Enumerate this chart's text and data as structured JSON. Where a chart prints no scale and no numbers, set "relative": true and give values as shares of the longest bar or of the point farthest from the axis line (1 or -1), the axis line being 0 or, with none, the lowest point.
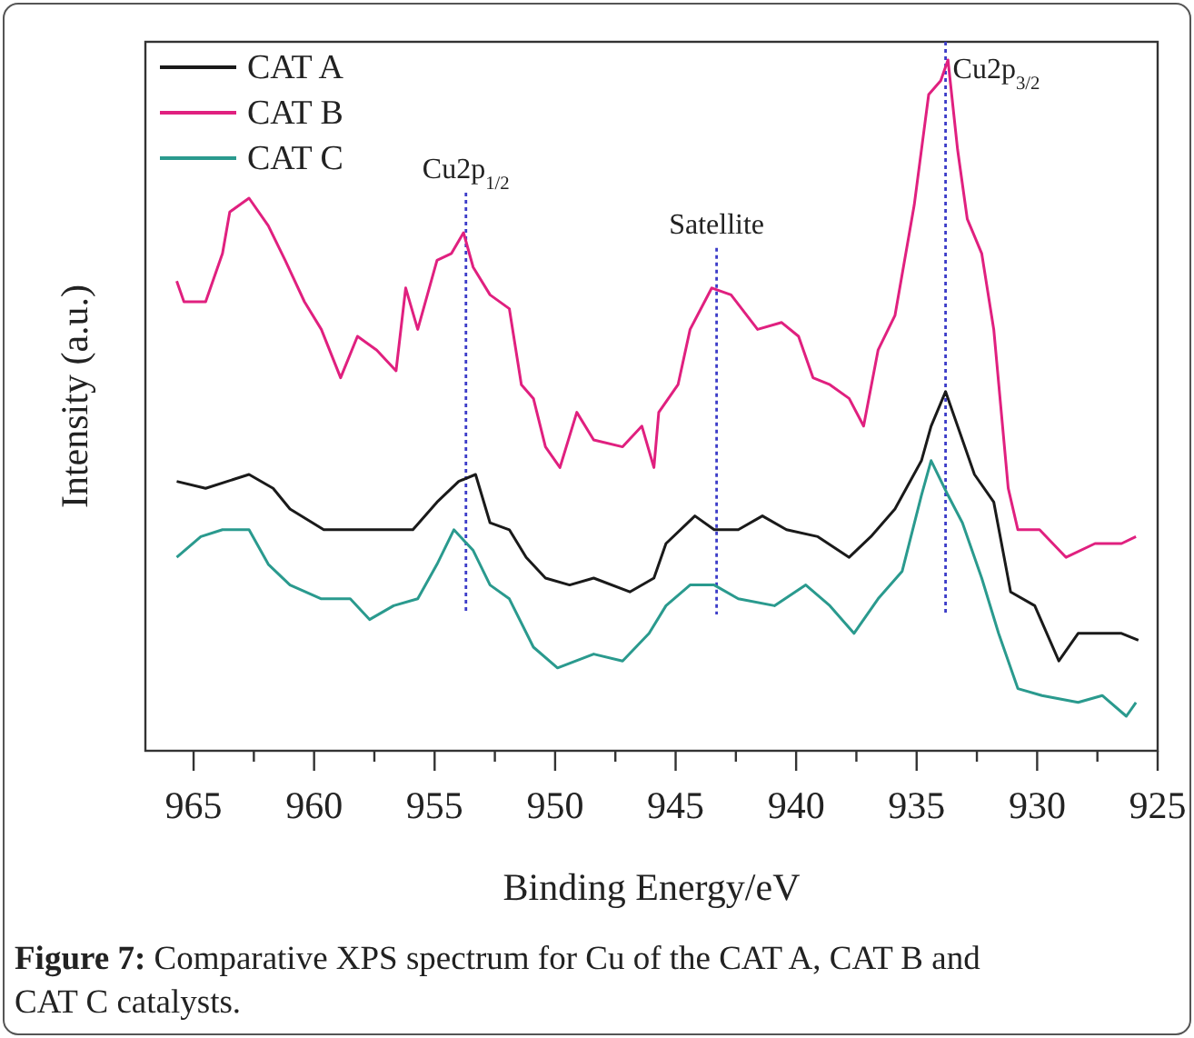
{
  "chart_data": {
    "type": "line",
    "relative": true,
    "xlabel": "Binding Energy/eV",
    "ylabel": "Intensity (a.u.)",
    "xlim": [
      967,
      925
    ],
    "xticks": [
      965,
      {
        "value": 962.5,
        "label": null
      },
      960,
      {
        "value": 957.5,
        "label": null
      },
      955,
      {
        "value": 952.5,
        "label": null
      },
      950,
      {
        "value": 947.5,
        "label": null
      },
      945,
      {
        "value": 942.5,
        "label": null
      },
      940,
      {
        "value": 937.5,
        "label": null
      },
      935,
      {
        "value": 932.5,
        "label": null
      },
      930,
      {
        "value": 927.5,
        "label": null
      },
      925
    ],
    "tick_labels": "x",
    "grid": false,
    "legend": "top left",
    "marker": "none",
    "line_style": "solid",
    "series": [
      {
        "name": "CAT A",
        "color": "#1a1a1a",
        "x": [
          965.7,
          964.5,
          962.7,
          961.7,
          961.0,
          959.6,
          958.5,
          957.0,
          955.9,
          954.9,
          954.0,
          953.3,
          952.7,
          951.9,
          951.2,
          950.4,
          949.4,
          948.4,
          946.9,
          945.9,
          945.4,
          944.2,
          943.4,
          942.4,
          941.4,
          940.4,
          939.1,
          937.8,
          936.9,
          935.9,
          934.8,
          934.4,
          933.8,
          933.3,
          932.6,
          931.8,
          931.1,
          930.1,
          929.1,
          928.3,
          927.3,
          926.5,
          925.8
        ],
        "values": [
          0.39,
          0.38,
          0.4,
          0.38,
          0.35,
          0.32,
          0.32,
          0.32,
          0.32,
          0.36,
          0.39,
          0.4,
          0.33,
          0.32,
          0.28,
          0.25,
          0.24,
          0.25,
          0.23,
          0.25,
          0.3,
          0.34,
          0.32,
          0.32,
          0.34,
          0.32,
          0.31,
          0.28,
          0.31,
          0.35,
          0.42,
          0.47,
          0.52,
          0.47,
          0.4,
          0.36,
          0.23,
          0.21,
          0.13,
          0.17,
          0.17,
          0.17,
          0.16
        ]
      },
      {
        "name": "CAT B",
        "color": "#e0207f",
        "x": [
          965.7,
          965.4,
          964.5,
          963.8,
          963.5,
          962.7,
          961.9,
          961.2,
          960.4,
          959.7,
          958.9,
          958.2,
          957.4,
          956.6,
          956.2,
          955.7,
          954.9,
          954.3,
          953.8,
          953.4,
          952.7,
          951.9,
          951.4,
          950.9,
          950.4,
          949.8,
          949.1,
          948.4,
          947.2,
          946.4,
          945.9,
          945.7,
          944.9,
          944.4,
          943.5,
          942.7,
          941.6,
          940.6,
          939.9,
          939.3,
          938.6,
          937.8,
          937.2,
          936.6,
          935.9,
          935.1,
          934.5,
          934.0,
          933.7,
          933.3,
          932.9,
          932.3,
          931.8,
          931.2,
          930.8,
          929.9,
          928.8,
          927.6,
          926.5,
          925.9
        ],
        "values": [
          0.68,
          0.65,
          0.65,
          0.72,
          0.78,
          0.8,
          0.76,
          0.71,
          0.65,
          0.61,
          0.54,
          0.6,
          0.58,
          0.55,
          0.67,
          0.61,
          0.71,
          0.72,
          0.75,
          0.7,
          0.66,
          0.64,
          0.53,
          0.51,
          0.44,
          0.41,
          0.49,
          0.45,
          0.44,
          0.47,
          0.41,
          0.49,
          0.53,
          0.61,
          0.67,
          0.66,
          0.61,
          0.62,
          0.6,
          0.54,
          0.53,
          0.51,
          0.47,
          0.58,
          0.63,
          0.79,
          0.95,
          0.97,
          1,
          0.87,
          0.77,
          0.72,
          0.61,
          0.38,
          0.32,
          0.32,
          0.28,
          0.3,
          0.3,
          0.31
        ]
      },
      {
        "name": "CAT C",
        "color": "#2a9a8e",
        "x": [
          965.7,
          964.7,
          963.8,
          962.7,
          961.9,
          961.0,
          959.7,
          958.5,
          957.7,
          956.7,
          955.7,
          954.9,
          954.2,
          953.4,
          952.7,
          951.9,
          950.9,
          949.9,
          948.4,
          947.2,
          946.1,
          945.4,
          944.4,
          943.4,
          942.4,
          940.9,
          939.6,
          938.6,
          937.6,
          936.6,
          935.6,
          934.8,
          934.4,
          933.7,
          933.1,
          932.3,
          931.6,
          930.8,
          929.8,
          928.3,
          927.3,
          926.3,
          925.9
        ],
        "values": [
          0.28,
          0.31,
          0.32,
          0.32,
          0.27,
          0.24,
          0.22,
          0.22,
          0.19,
          0.21,
          0.22,
          0.27,
          0.32,
          0.29,
          0.24,
          0.22,
          0.15,
          0.12,
          0.14,
          0.13,
          0.17,
          0.21,
          0.24,
          0.24,
          0.22,
          0.21,
          0.24,
          0.21,
          0.17,
          0.22,
          0.26,
          0.37,
          0.42,
          0.37,
          0.33,
          0.25,
          0.17,
          0.09,
          0.08,
          0.07,
          0.08,
          0.05,
          0.07
        ]
      }
    ],
    "ref_lines": [
      {
        "axis": "x",
        "value": 953.7,
        "label": "Cu2p$_{1/2}$",
        "color": "#3c3cc8",
        "line_style": "dotted"
      },
      {
        "axis": "x",
        "value": 943.3,
        "label": "Satellite",
        "color": "#3c3cc8",
        "line_style": "dotted"
      },
      {
        "axis": "x",
        "value": 933.8,
        "label": "Cu2p$_{3/2}$",
        "color": "#3c3cc8",
        "line_style": "dotted"
      }
    ],
    "annotations": [
      "Figure 7: Comparative XPS spectrum for Cu of the CAT A, CAT B and CAT C catalysts."
    ]
  }
}
